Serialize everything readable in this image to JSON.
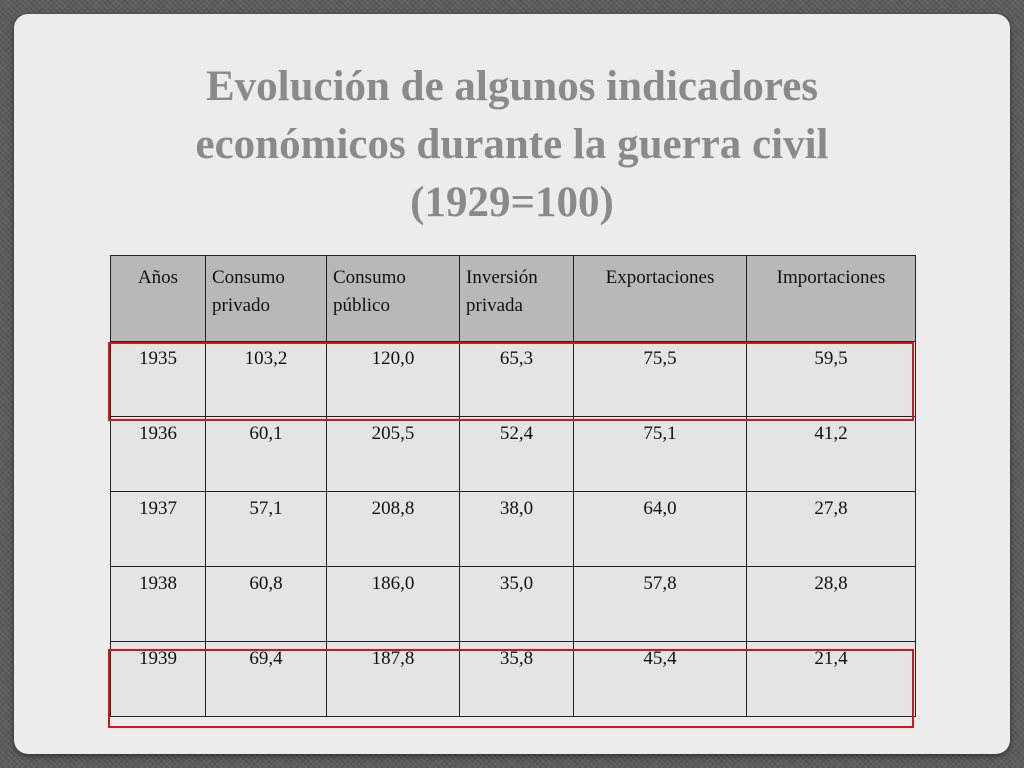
{
  "title": {
    "line1": "Evolución de algunos indicadores",
    "line2": "económicos durante la guerra civil",
    "line3": "(1929=100)"
  },
  "table": {
    "headers": [
      "Años",
      "Consumo privado",
      "Consumo público",
      "Inversión privada",
      "Exportaciones",
      "Importaciones"
    ],
    "rows": [
      [
        "1935",
        "103,2",
        "120,0",
        "65,3",
        "75,5",
        "59,5"
      ],
      [
        "1936",
        "60,1",
        "205,5",
        "52,4",
        "75,1",
        "41,2"
      ],
      [
        "1937",
        "57,1",
        "208,8",
        "38,0",
        "64,0",
        "27,8"
      ],
      [
        "1938",
        "60,8",
        "186,0",
        "35,0",
        "57,8",
        "28,8"
      ],
      [
        "1939",
        "69,4",
        "187,8",
        "35,8",
        "45,4",
        "21,4"
      ]
    ],
    "highlighted_rows": [
      "1935",
      "1939"
    ],
    "highlight_color": "#d01818"
  },
  "colors": {
    "title": "#8a8a8a",
    "header_bg": "#b8b8b8",
    "cell_bg": "#e4e4e4"
  }
}
